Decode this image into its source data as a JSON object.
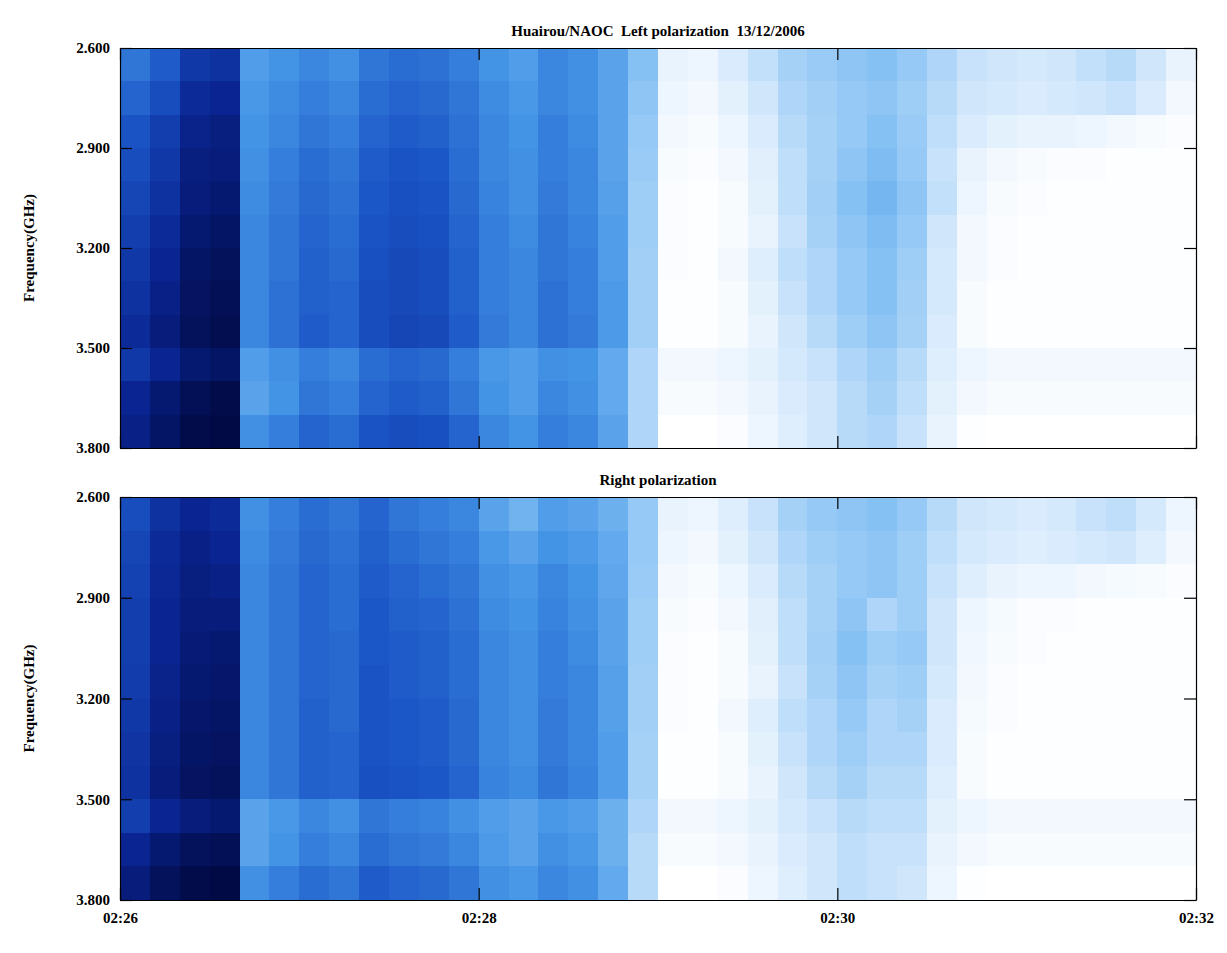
{
  "chart_data": [
    {
      "type": "heatmap",
      "title": "Huairou/NAOC  Left polarization  13/12/2006",
      "y_label": "Frequency(GHz)",
      "xlim": [
        1560,
        1920
      ],
      "ylim": [
        2.6,
        3.8
      ],
      "tick_labels": "y",
      "xticks": [
        {
          "value": 1560,
          "label": "02:26"
        },
        {
          "value": 1680,
          "label": "02:28"
        },
        {
          "value": 1800,
          "label": "02:30"
        },
        {
          "value": 1920,
          "label": "02:32"
        }
      ],
      "yticks": [
        {
          "value": 2.6,
          "label": "2.600"
        },
        {
          "value": 2.9,
          "label": "2.900"
        },
        {
          "value": 3.2,
          "label": "3.200"
        },
        {
          "value": 3.5,
          "label": "3.500"
        },
        {
          "value": 3.8,
          "label": "3.800"
        }
      ],
      "xbins": [
        1560,
        1570,
        1580,
        1590,
        1600,
        1610,
        1620,
        1630,
        1640,
        1650,
        1660,
        1670,
        1680,
        1690,
        1700,
        1710,
        1720,
        1730,
        1740,
        1750,
        1760,
        1770,
        1780,
        1790,
        1800,
        1810,
        1820,
        1830,
        1840,
        1850,
        1860,
        1870,
        1880,
        1890,
        1900,
        1910,
        1920
      ],
      "ybins": [
        2.6,
        2.7,
        2.8,
        2.9,
        3.0,
        3.1,
        3.2,
        3.3,
        3.4,
        3.5,
        3.6,
        3.7,
        3.8
      ],
      "cells": [
        [
          62,
          68,
          78,
          80,
          52,
          55,
          58,
          56,
          62,
          64,
          63,
          60,
          55,
          52,
          58,
          56,
          50,
          40,
          12,
          10,
          18,
          25,
          32,
          35,
          38,
          40,
          36,
          30,
          24,
          22,
          20,
          22,
          25,
          28,
          22,
          12
        ],
        [
          66,
          72,
          82,
          84,
          54,
          57,
          60,
          58,
          64,
          66,
          65,
          62,
          57,
          54,
          58,
          56,
          50,
          38,
          10,
          8,
          14,
          22,
          30,
          33,
          36,
          38,
          34,
          28,
          22,
          20,
          18,
          20,
          22,
          24,
          18,
          8
        ],
        [
          70,
          76,
          85,
          87,
          55,
          58,
          62,
          60,
          66,
          68,
          67,
          63,
          58,
          55,
          60,
          57,
          50,
          36,
          8,
          6,
          10,
          18,
          28,
          32,
          36,
          40,
          35,
          26,
          18,
          14,
          12,
          12,
          10,
          8,
          6,
          5
        ],
        [
          72,
          78,
          87,
          88,
          56,
          60,
          64,
          62,
          68,
          70,
          69,
          64,
          58,
          56,
          60,
          58,
          50,
          35,
          6,
          5,
          8,
          15,
          26,
          32,
          38,
          42,
          36,
          24,
          12,
          8,
          6,
          5,
          5,
          4,
          4,
          4
        ],
        [
          74,
          80,
          88,
          90,
          57,
          61,
          65,
          63,
          69,
          71,
          70,
          65,
          59,
          56,
          61,
          58,
          51,
          34,
          5,
          4,
          6,
          14,
          26,
          33,
          40,
          44,
          38,
          25,
          10,
          6,
          5,
          4,
          4,
          4,
          4,
          4
        ],
        [
          76,
          82,
          90,
          92,
          58,
          62,
          66,
          64,
          70,
          72,
          71,
          66,
          60,
          57,
          62,
          59,
          52,
          34,
          5,
          4,
          6,
          12,
          24,
          32,
          38,
          42,
          36,
          22,
          8,
          5,
          4,
          4,
          4,
          4,
          4,
          4
        ],
        [
          78,
          84,
          92,
          94,
          58,
          62,
          67,
          65,
          71,
          73,
          72,
          67,
          60,
          58,
          62,
          60,
          52,
          33,
          5,
          4,
          8,
          16,
          26,
          30,
          36,
          40,
          34,
          20,
          8,
          5,
          4,
          4,
          4,
          4,
          4,
          4
        ],
        [
          80,
          86,
          93,
          95,
          58,
          63,
          67,
          66,
          72,
          73,
          72,
          67,
          60,
          58,
          63,
          60,
          53,
          33,
          4,
          4,
          6,
          14,
          24,
          30,
          36,
          40,
          33,
          20,
          6,
          4,
          4,
          4,
          4,
          4,
          4,
          4
        ],
        [
          82,
          88,
          94,
          96,
          58,
          63,
          68,
          66,
          72,
          74,
          73,
          68,
          61,
          58,
          63,
          61,
          53,
          33,
          4,
          4,
          6,
          12,
          22,
          28,
          34,
          38,
          32,
          18,
          6,
          4,
          4,
          4,
          4,
          4,
          4,
          4
        ],
        [
          78,
          84,
          90,
          92,
          52,
          56,
          60,
          58,
          64,
          66,
          65,
          60,
          54,
          52,
          56,
          55,
          48,
          30,
          8,
          8,
          10,
          14,
          20,
          24,
          30,
          34,
          28,
          16,
          10,
          8,
          8,
          8,
          8,
          8,
          8,
          8
        ],
        [
          84,
          90,
          95,
          97,
          50,
          55,
          62,
          60,
          66,
          68,
          67,
          62,
          55,
          52,
          58,
          56,
          48,
          30,
          6,
          6,
          8,
          12,
          18,
          22,
          28,
          32,
          26,
          14,
          8,
          6,
          6,
          6,
          6,
          6,
          6,
          6
        ],
        [
          86,
          92,
          97,
          98,
          56,
          60,
          66,
          64,
          70,
          72,
          71,
          66,
          58,
          55,
          60,
          58,
          50,
          30,
          3,
          3,
          5,
          10,
          16,
          22,
          28,
          30,
          24,
          12,
          4,
          3,
          3,
          3,
          3,
          3,
          3,
          3
        ]
      ]
    },
    {
      "type": "heatmap",
      "title": "Right polarization",
      "y_label": "Frequency(GHz)",
      "xlim": [
        1560,
        1920
      ],
      "ylim": [
        2.6,
        3.8
      ],
      "xticks": [
        {
          "value": 1560,
          "label": "02:26"
        },
        {
          "value": 1680,
          "label": "02:28"
        },
        {
          "value": 1800,
          "label": "02:30"
        },
        {
          "value": 1920,
          "label": "02:32"
        }
      ],
      "yticks": [
        {
          "value": 2.6,
          "label": "2.600"
        },
        {
          "value": 2.9,
          "label": "2.900"
        },
        {
          "value": 3.2,
          "label": "3.200"
        },
        {
          "value": 3.5,
          "label": "3.500"
        },
        {
          "value": 3.8,
          "label": "3.800"
        }
      ],
      "xbins": [
        1560,
        1570,
        1580,
        1590,
        1600,
        1610,
        1620,
        1630,
        1640,
        1650,
        1660,
        1670,
        1680,
        1690,
        1700,
        1710,
        1720,
        1730,
        1740,
        1750,
        1760,
        1770,
        1780,
        1790,
        1800,
        1810,
        1820,
        1830,
        1840,
        1850,
        1860,
        1870,
        1880,
        1890,
        1900,
        1910,
        1920
      ],
      "ybins": [
        2.6,
        2.7,
        2.8,
        2.9,
        3.0,
        3.1,
        3.2,
        3.3,
        3.4,
        3.5,
        3.6,
        3.7,
        3.8
      ],
      "cells": [
        [
          72,
          80,
          84,
          82,
          56,
          60,
          64,
          62,
          66,
          62,
          60,
          58,
          50,
          45,
          52,
          50,
          46,
          36,
          12,
          10,
          16,
          24,
          32,
          36,
          38,
          40,
          36,
          28,
          22,
          20,
          18,
          20,
          24,
          26,
          20,
          10
        ],
        [
          74,
          82,
          86,
          84,
          57,
          61,
          65,
          63,
          67,
          64,
          62,
          60,
          54,
          50,
          55,
          53,
          48,
          36,
          10,
          8,
          14,
          22,
          30,
          34,
          36,
          38,
          34,
          26,
          20,
          18,
          16,
          18,
          20,
          22,
          16,
          8
        ],
        [
          75,
          83,
          87,
          86,
          58,
          62,
          66,
          64,
          68,
          66,
          64,
          62,
          56,
          54,
          58,
          55,
          49,
          35,
          8,
          6,
          10,
          18,
          28,
          32,
          36,
          38,
          34,
          24,
          16,
          12,
          10,
          10,
          8,
          7,
          6,
          5
        ],
        [
          76,
          84,
          88,
          88,
          58,
          62,
          66,
          64,
          69,
          67,
          66,
          63,
          57,
          55,
          59,
          56,
          50,
          34,
          6,
          5,
          8,
          15,
          26,
          32,
          38,
          30,
          34,
          22,
          10,
          7,
          5,
          5,
          4,
          4,
          4,
          4
        ],
        [
          76,
          84,
          89,
          90,
          58,
          62,
          66,
          65,
          69,
          68,
          67,
          64,
          58,
          56,
          60,
          57,
          50,
          34,
          5,
          4,
          6,
          14,
          26,
          33,
          40,
          34,
          36,
          22,
          9,
          6,
          5,
          4,
          4,
          4,
          4,
          4
        ],
        [
          77,
          85,
          90,
          91,
          58,
          62,
          66,
          65,
          70,
          68,
          67,
          64,
          58,
          56,
          60,
          58,
          51,
          33,
          5,
          4,
          6,
          12,
          24,
          32,
          38,
          32,
          34,
          20,
          8,
          5,
          4,
          4,
          4,
          4,
          4,
          4
        ],
        [
          78,
          86,
          91,
          92,
          58,
          62,
          67,
          65,
          70,
          69,
          68,
          65,
          58,
          56,
          61,
          58,
          51,
          33,
          5,
          4,
          8,
          16,
          26,
          30,
          36,
          30,
          32,
          18,
          7,
          5,
          4,
          4,
          4,
          4,
          4,
          4
        ],
        [
          79,
          87,
          92,
          93,
          58,
          62,
          67,
          66,
          70,
          69,
          68,
          65,
          58,
          56,
          61,
          58,
          52,
          32,
          4,
          4,
          6,
          14,
          24,
          30,
          34,
          30,
          30,
          18,
          6,
          4,
          4,
          4,
          4,
          4,
          4,
          4
        ],
        [
          80,
          88,
          93,
          94,
          58,
          62,
          67,
          66,
          71,
          70,
          69,
          66,
          59,
          57,
          62,
          59,
          52,
          32,
          4,
          4,
          6,
          12,
          22,
          28,
          32,
          28,
          28,
          16,
          6,
          4,
          4,
          4,
          4,
          4,
          4,
          4
        ],
        [
          76,
          84,
          88,
          90,
          50,
          54,
          58,
          56,
          62,
          60,
          59,
          56,
          52,
          50,
          54,
          52,
          46,
          30,
          8,
          8,
          10,
          14,
          20,
          24,
          28,
          26,
          26,
          14,
          10,
          8,
          8,
          8,
          8,
          8,
          8,
          8
        ],
        [
          84,
          90,
          94,
          95,
          50,
          55,
          60,
          58,
          64,
          62,
          61,
          58,
          53,
          50,
          56,
          54,
          46,
          28,
          6,
          6,
          8,
          12,
          18,
          22,
          26,
          24,
          24,
          12,
          8,
          6,
          6,
          6,
          6,
          6,
          6,
          6
        ],
        [
          88,
          94,
          97,
          98,
          56,
          60,
          64,
          62,
          68,
          66,
          65,
          62,
          56,
          54,
          58,
          56,
          48,
          28,
          3,
          3,
          5,
          10,
          16,
          22,
          26,
          24,
          22,
          10,
          4,
          3,
          3,
          3,
          3,
          3,
          3,
          3
        ]
      ]
    }
  ]
}
